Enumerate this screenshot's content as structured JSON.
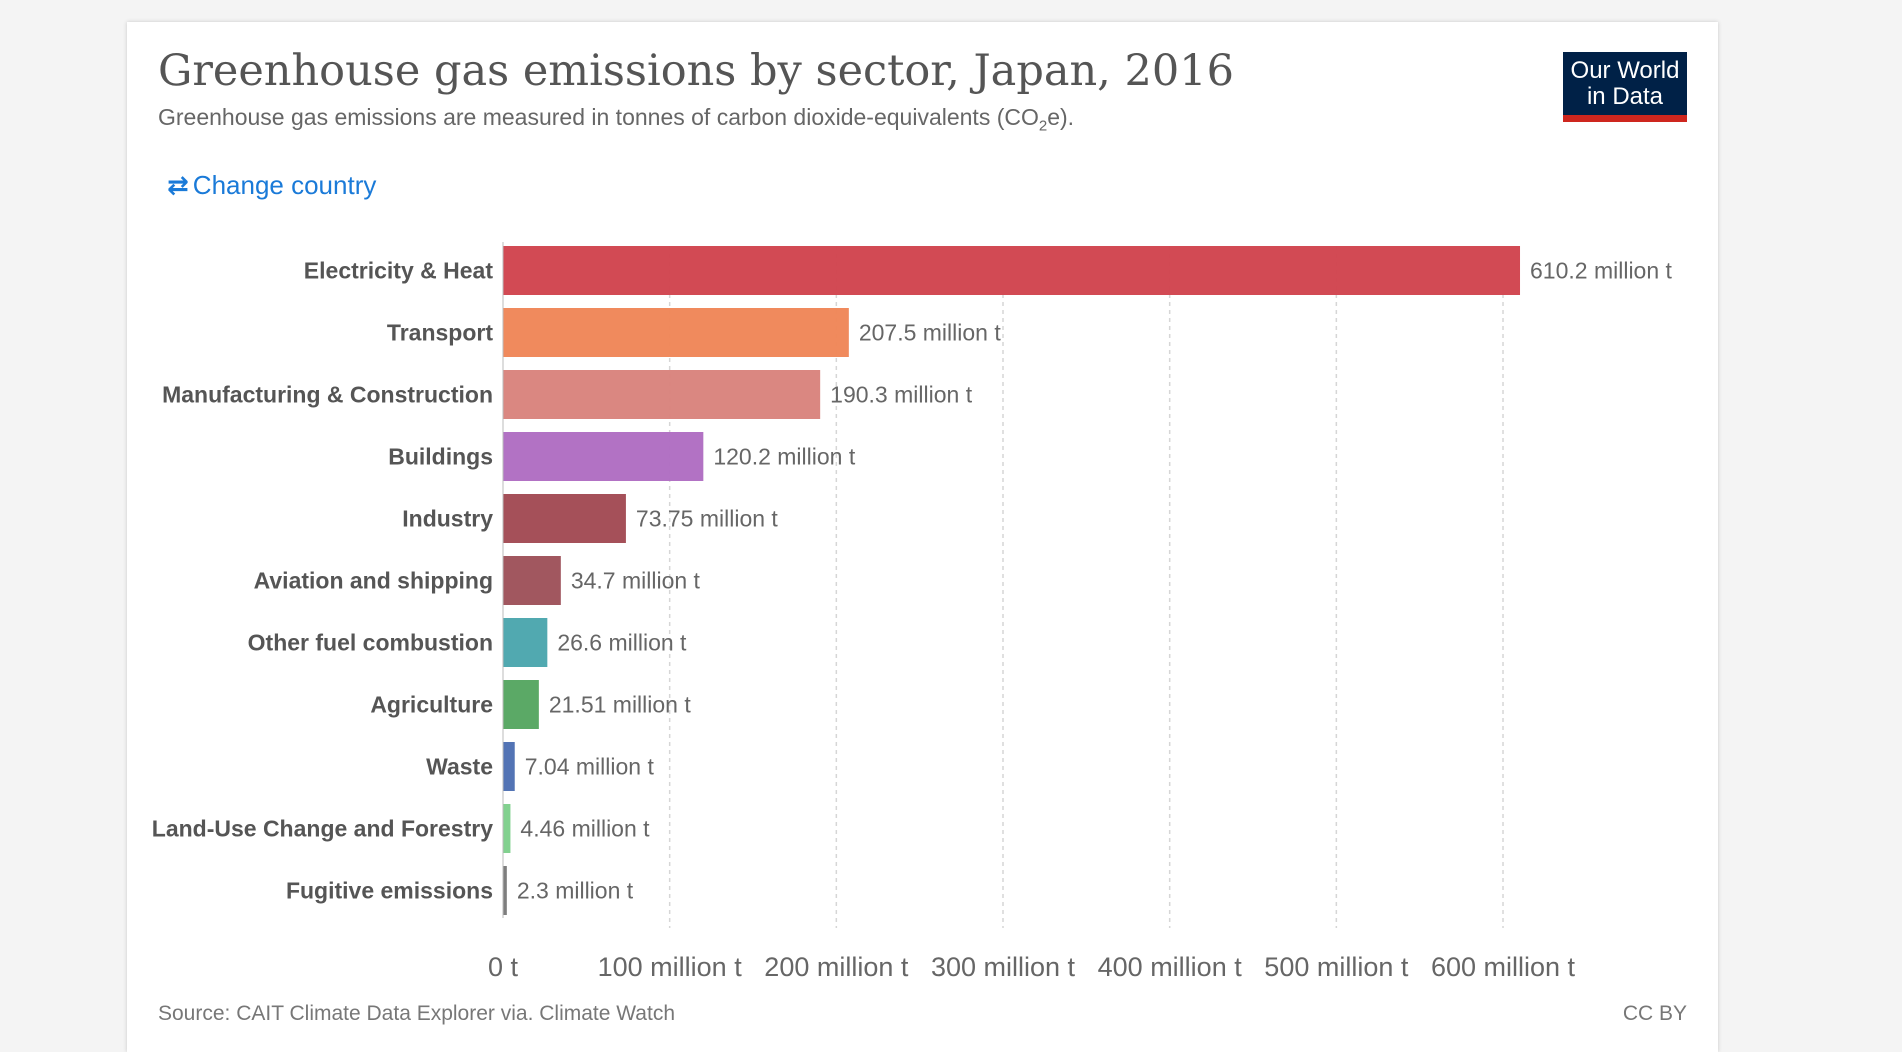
{
  "header": {
    "title": "Greenhouse gas emissions by sector, Japan, 2016",
    "subtitle_prefix": "Greenhouse gas emissions are measured in tonnes of carbon dioxide-equivalents (CO",
    "subtitle_sub": "2",
    "subtitle_suffix": "e)."
  },
  "logo": {
    "line1": "Our World",
    "line2": "in Data"
  },
  "controls": {
    "change_country_label": "Change country",
    "change_country_icon": "swap-arrows-icon"
  },
  "footer": {
    "source": "Source: CAIT Climate Data Explorer via. Climate Watch",
    "license": "CC BY"
  },
  "chart_data": {
    "type": "bar",
    "orientation": "horizontal",
    "categories": [
      "Electricity & Heat",
      "Transport",
      "Manufacturing & Construction",
      "Buildings",
      "Industry",
      "Aviation and shipping",
      "Other fuel combustion",
      "Agriculture",
      "Waste",
      "Land-Use Change and Forestry",
      "Fugitive emissions"
    ],
    "values": [
      610.2,
      207.5,
      190.3,
      120.2,
      73.75,
      34.7,
      26.6,
      21.51,
      7.04,
      4.46,
      2.3
    ],
    "value_labels": [
      "610.2 million t",
      "207.5 million t",
      "190.3 million t",
      "120.2 million t",
      "73.75 million t",
      "34.7 million t",
      "26.6 million t",
      "21.51 million t",
      "7.04 million t",
      "4.46 million t",
      "2.3 million t"
    ],
    "colors": [
      "#d1444e",
      "#ef8658",
      "#d9837d",
      "#b06dc2",
      "#a24a54",
      "#9e525a",
      "#4ba6ad",
      "#56a661",
      "#4d6fb3",
      "#7ed08b",
      "#7a7a7a"
    ],
    "xlim": [
      0,
      650
    ],
    "x_ticks": [
      0,
      100,
      200,
      300,
      400,
      500,
      600
    ],
    "x_tick_labels": [
      "0 t",
      "100 million t",
      "200 million t",
      "300 million t",
      "400 million t",
      "500 million t",
      "600 million t"
    ],
    "grid": true,
    "unit": "million t"
  }
}
